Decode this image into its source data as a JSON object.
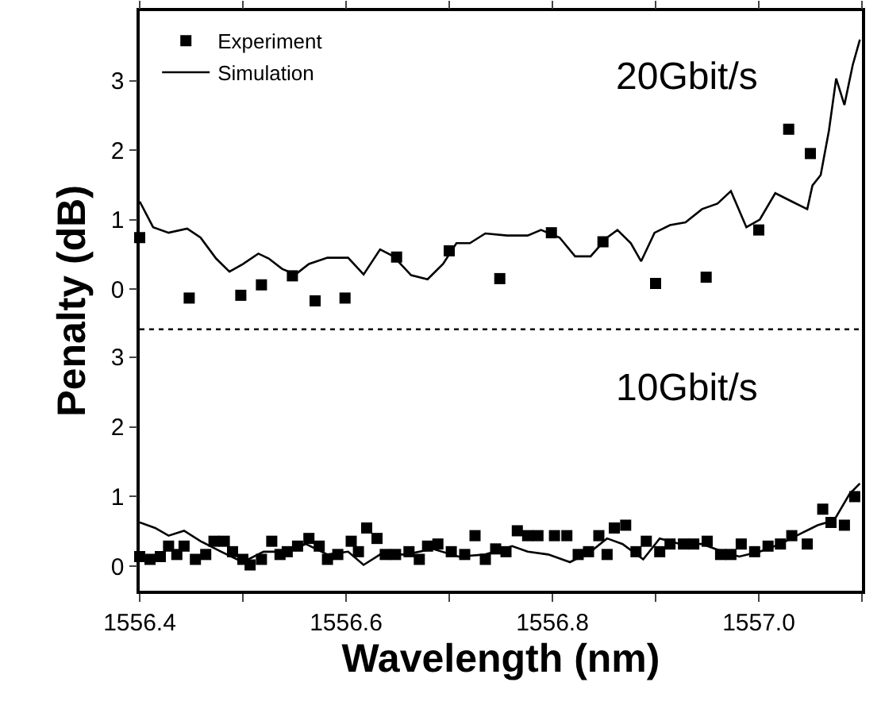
{
  "chart_data": [
    {
      "type": "scatter",
      "ylabel": "Penalty (dB)",
      "annotations": [
        "20Gbit/s"
      ],
      "legend": "top left",
      "tick_labels": "y",
      "xlim": [
        1556.4,
        1557.1
      ],
      "xticks": [
        {
          "value": 1556.4,
          "label": null
        },
        {
          "value": 1556.5,
          "label": null
        },
        {
          "value": 1556.6,
          "label": null
        },
        {
          "value": 1556.7,
          "label": null
        },
        {
          "value": 1556.8,
          "label": null
        },
        {
          "value": 1556.9,
          "label": null
        },
        {
          "value": 1557.0,
          "label": null
        },
        {
          "value": 1557.1,
          "label": null
        }
      ],
      "ylim": [
        -0.58,
        4.0
      ],
      "yticks": [
        0,
        1,
        2,
        3
      ],
      "series": [
        {
          "name": "Experiment",
          "marker": "square",
          "color": "#000000",
          "x": [
            1556.4,
            1556.448,
            1556.498,
            1556.518,
            1556.548,
            1556.57,
            1556.599,
            1556.649,
            1556.7,
            1556.749,
            1556.799,
            1556.849,
            1556.9,
            1556.949,
            1557.0,
            1557.029,
            1557.05
          ],
          "values": [
            0.74,
            -0.13,
            -0.09,
            0.06,
            0.19,
            -0.17,
            -0.13,
            0.46,
            0.55,
            0.15,
            0.81,
            0.68,
            0.08,
            0.17,
            0.85,
            2.3,
            1.95
          ]
        },
        {
          "name": "Simulation",
          "type": "line",
          "line_style": "solid",
          "color": "#000000",
          "x": [
            1556.4,
            1556.413,
            1556.428,
            1556.446,
            1556.459,
            1556.474,
            1556.487,
            1556.5,
            1556.515,
            1556.525,
            1556.538,
            1556.551,
            1556.564,
            1556.582,
            1556.602,
            1556.617,
            1556.633,
            1556.646,
            1556.663,
            1556.679,
            1556.694,
            1556.707,
            1556.72,
            1556.735,
            1556.756,
            1556.776,
            1556.789,
            1556.807,
            1556.822,
            1556.837,
            1556.853,
            1556.863,
            1556.876,
            1556.886,
            1556.899,
            1556.914,
            1556.929,
            1556.945,
            1556.96,
            1556.973,
            1556.988,
            1557.001,
            1557.016,
            1557.032,
            1557.047,
            1557.052,
            1557.06,
            1557.068,
            1557.075,
            1557.083,
            1557.091,
            1557.098
          ],
          "values": [
            1.26,
            0.89,
            0.81,
            0.87,
            0.74,
            0.44,
            0.25,
            0.36,
            0.51,
            0.44,
            0.29,
            0.21,
            0.36,
            0.45,
            0.45,
            0.21,
            0.57,
            0.47,
            0.2,
            0.14,
            0.36,
            0.66,
            0.66,
            0.8,
            0.77,
            0.77,
            0.85,
            0.74,
            0.47,
            0.47,
            0.74,
            0.85,
            0.66,
            0.4,
            0.81,
            0.92,
            0.96,
            1.15,
            1.23,
            1.41,
            0.89,
            1.0,
            1.38,
            1.26,
            1.15,
            1.49,
            1.64,
            2.28,
            3.03,
            2.65,
            3.22,
            3.59
          ]
        }
      ]
    },
    {
      "type": "scatter",
      "xlabel": "Wavelength (nm)",
      "annotations": [
        "10Gbit/s"
      ],
      "legend": false,
      "xlim": [
        1556.4,
        1557.1
      ],
      "xticks": [
        1556.4,
        {
          "value": 1556.5,
          "label": null
        },
        1556.6,
        {
          "value": 1556.7,
          "label": null
        },
        1556.8,
        {
          "value": 1556.9,
          "label": null
        },
        {
          "value": 1557.0,
          "label": "1557.0"
        },
        {
          "value": 1557.1,
          "label": null
        }
      ],
      "ylim": [
        -0.35,
        3.4
      ],
      "yticks": [
        0,
        1,
        2,
        3
      ],
      "series": [
        {
          "marker": "square",
          "color": "#000000",
          "x": [
            1556.4,
            1556.41,
            1556.42,
            1556.428,
            1556.436,
            1556.443,
            1556.454,
            1556.464,
            1556.472,
            1556.482,
            1556.49,
            1556.5,
            1556.507,
            1556.518,
            1556.528,
            1556.536,
            1556.543,
            1556.553,
            1556.564,
            1556.574,
            1556.582,
            1556.592,
            1556.605,
            1556.612,
            1556.62,
            1556.63,
            1556.638,
            1556.648,
            1556.661,
            1556.671,
            1556.679,
            1556.689,
            1556.702,
            1556.715,
            1556.725,
            1556.735,
            1556.745,
            1556.755,
            1556.766,
            1556.776,
            1556.786,
            1556.802,
            1556.814,
            1556.825,
            1556.835,
            1556.845,
            1556.853,
            1556.86,
            1556.871,
            1556.881,
            1556.891,
            1556.904,
            1556.914,
            1556.927,
            1556.937,
            1556.95,
            1556.963,
            1556.973,
            1556.983,
            1556.996,
            1557.009,
            1557.021,
            1557.032,
            1557.047,
            1557.062,
            1557.07,
            1557.083,
            1557.093
          ],
          "values": [
            0.14,
            0.1,
            0.14,
            0.29,
            0.17,
            0.29,
            0.1,
            0.17,
            0.36,
            0.36,
            0.21,
            0.1,
            0.02,
            0.1,
            0.36,
            0.17,
            0.21,
            0.29,
            0.4,
            0.29,
            0.1,
            0.17,
            0.36,
            0.21,
            0.55,
            0.4,
            0.17,
            0.17,
            0.21,
            0.1,
            0.29,
            0.32,
            0.21,
            0.17,
            0.44,
            0.1,
            0.25,
            0.21,
            0.51,
            0.44,
            0.44,
            0.44,
            0.44,
            0.17,
            0.21,
            0.44,
            0.17,
            0.55,
            0.59,
            0.21,
            0.36,
            0.21,
            0.32,
            0.32,
            0.32,
            0.36,
            0.17,
            0.17,
            0.32,
            0.21,
            0.29,
            0.32,
            0.44,
            0.32,
            0.82,
            0.63,
            0.59,
            1.0
          ]
        },
        {
          "type": "line",
          "line_style": "solid",
          "color": "#000000",
          "x": [
            1556.4,
            1556.415,
            1556.428,
            1556.443,
            1556.459,
            1556.479,
            1556.5,
            1556.52,
            1556.541,
            1556.561,
            1556.582,
            1556.602,
            1556.617,
            1556.633,
            1556.658,
            1556.684,
            1556.709,
            1556.735,
            1556.761,
            1556.776,
            1556.796,
            1556.817,
            1556.837,
            1556.853,
            1556.868,
            1556.888,
            1556.904,
            1556.924,
            1556.945,
            1556.965,
            1556.981,
            1557.001,
            1557.021,
            1557.042,
            1557.057,
            1557.073,
            1557.088,
            1557.098
          ],
          "values": [
            0.63,
            0.55,
            0.44,
            0.51,
            0.36,
            0.21,
            0.06,
            0.21,
            0.21,
            0.32,
            0.17,
            0.21,
            0.02,
            0.17,
            0.17,
            0.25,
            0.14,
            0.17,
            0.29,
            0.21,
            0.17,
            0.06,
            0.21,
            0.4,
            0.32,
            0.1,
            0.4,
            0.32,
            0.32,
            0.21,
            0.14,
            0.21,
            0.32,
            0.48,
            0.59,
            0.66,
            1.04,
            1.19
          ]
        }
      ]
    }
  ]
}
